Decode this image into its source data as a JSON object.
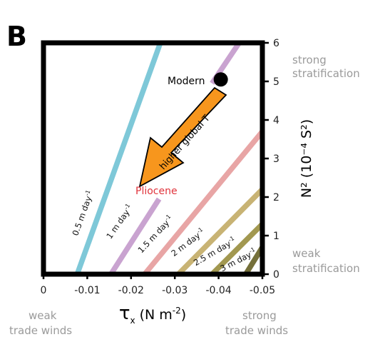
{
  "panel_label": "B",
  "chart_data": {
    "type": "line",
    "xlabel_main": "τ",
    "xlabel_sub": "x",
    "xlabel_unit": "(N m",
    "xlabel_unit_exp": "-2",
    "xlabel_close": ")",
    "ylabel": "N² (10⁻⁴ S²)",
    "xlim": [
      0,
      -0.05
    ],
    "ylim": [
      0,
      6
    ],
    "x_ticks": [
      "0",
      "-0.01",
      "-0.02",
      "-0.03",
      "-0.04",
      "-0.05"
    ],
    "y_ticks": [
      "0",
      "1",
      "2",
      "3",
      "4",
      "5",
      "6"
    ],
    "contours": [
      {
        "label": "0.5 m day",
        "exp": "-1",
        "color": "#7ec8d8",
        "points": [
          [
            -0.0077,
            0
          ],
          [
            -0.0267,
            6
          ]
        ]
      },
      {
        "label": "1 m day",
        "exp": "-1",
        "color": "#c9a3d0",
        "points": [
          [
            -0.0154,
            0
          ],
          [
            -0.0264,
            1.95
          ]
        ]
      },
      {
        "label": "1 m day",
        "exp": "-1",
        "color": "#c9a3d0",
        "points": [
          [
            -0.0385,
            4.95
          ],
          [
            -0.0447,
            6
          ]
        ]
      },
      {
        "label": "1.5 m day",
        "exp": "-1",
        "color": "#e8a5a5",
        "points": [
          [
            -0.0231,
            0
          ],
          [
            -0.05,
            3.7
          ]
        ]
      },
      {
        "label": "2 m day",
        "exp": "-1",
        "color": "#c8b374",
        "points": [
          [
            -0.0308,
            0
          ],
          [
            -0.05,
            2.2
          ]
        ]
      },
      {
        "label": "2.5 m day",
        "exp": "-1",
        "color": "#a29850",
        "points": [
          [
            -0.0385,
            0
          ],
          [
            -0.05,
            1.3
          ]
        ]
      },
      {
        "label": "3 m day",
        "exp": "-1",
        "color": "#75703a",
        "points": [
          [
            -0.0462,
            0
          ],
          [
            -0.05,
            0.7
          ]
        ]
      }
    ],
    "points": [
      {
        "name": "Modern",
        "x": -0.0405,
        "y": 5.05,
        "color": "#000000"
      }
    ],
    "annotations": {
      "pliocene": "Pliocene",
      "arrow": "higher global T",
      "strong_stratification": [
        "strong",
        "stratification"
      ],
      "weak_stratification": [
        "weak",
        "stratification"
      ],
      "weak_trade_winds": [
        "weak",
        "trade winds"
      ],
      "strong_trade_winds": [
        "strong",
        "trade winds"
      ]
    }
  }
}
